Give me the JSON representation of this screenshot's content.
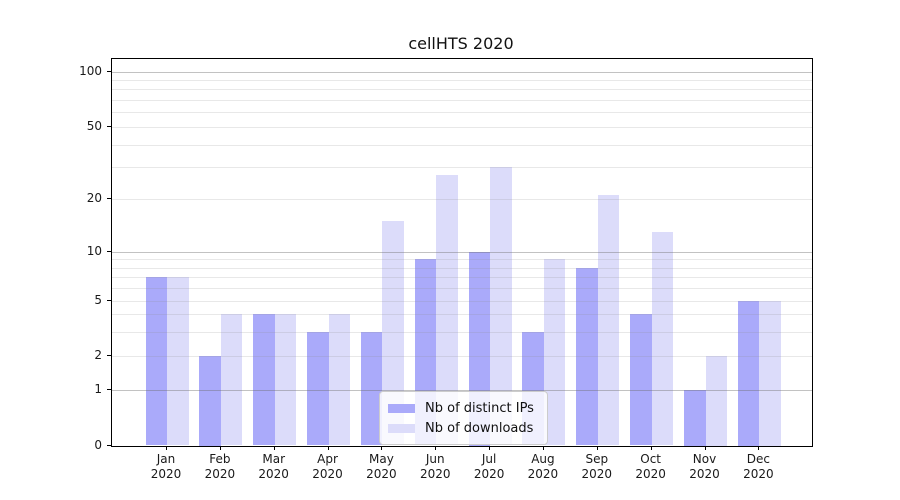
{
  "title": "cellHTS 2020",
  "chart_data": {
    "type": "bar",
    "title": "cellHTS 2020",
    "categories": [
      "Jan",
      "Feb",
      "Mar",
      "Apr",
      "May",
      "Jun",
      "Jul",
      "Aug",
      "Sep",
      "Oct",
      "Nov",
      "Dec"
    ],
    "year": "2020",
    "series": [
      {
        "name": "Nb of distinct IPs",
        "color": "#aaaafa",
        "values": [
          7,
          2,
          4,
          3,
          3,
          9,
          10,
          3,
          8,
          4,
          1,
          5
        ]
      },
      {
        "name": "Nb of downloads",
        "color": "#dcdcfa",
        "values": [
          7,
          4,
          4,
          4,
          15,
          27,
          30,
          9,
          21,
          13,
          2,
          5
        ]
      }
    ],
    "xlabel": "",
    "ylabel": "",
    "y_scale": "symlog",
    "y_ticks": [
      0,
      1,
      2,
      5,
      10,
      20,
      50,
      100
    ],
    "y_minor_gridlines": [
      2,
      3,
      4,
      5,
      6,
      7,
      8,
      9,
      20,
      30,
      40,
      50,
      60,
      70,
      80,
      90
    ],
    "y_major_gridlines": [
      1,
      10,
      100
    ],
    "ylim": [
      0,
      110
    ],
    "grid": "on",
    "legend_position": "inside lower-center"
  },
  "colors": {
    "series_dark": "#aaaafa",
    "series_light": "#dcdcfa",
    "grid_major": "#c4c4c4",
    "grid_minor": "#e9e9e9",
    "spine": "#000000",
    "background": "#ffffff"
  }
}
